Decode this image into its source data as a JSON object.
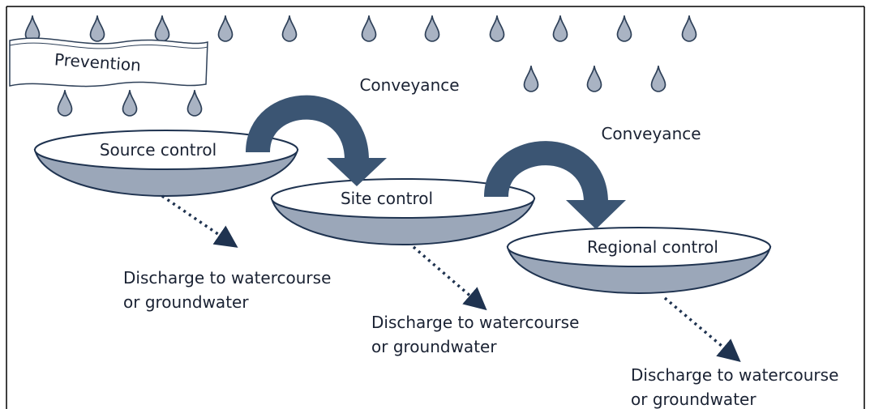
{
  "labels": {
    "prevention": "Prevention",
    "conveyance": [
      "Conveyance",
      "Conveyance"
    ],
    "bowls": [
      "Source control",
      "Site control",
      "Regional control"
    ],
    "discharge": [
      [
        "Discharge to watercourse",
        "or groundwater"
      ],
      [
        "Discharge to watercourse",
        "or groundwater"
      ],
      [
        "Discharge to watercourse",
        "or groundwater"
      ]
    ]
  }
}
